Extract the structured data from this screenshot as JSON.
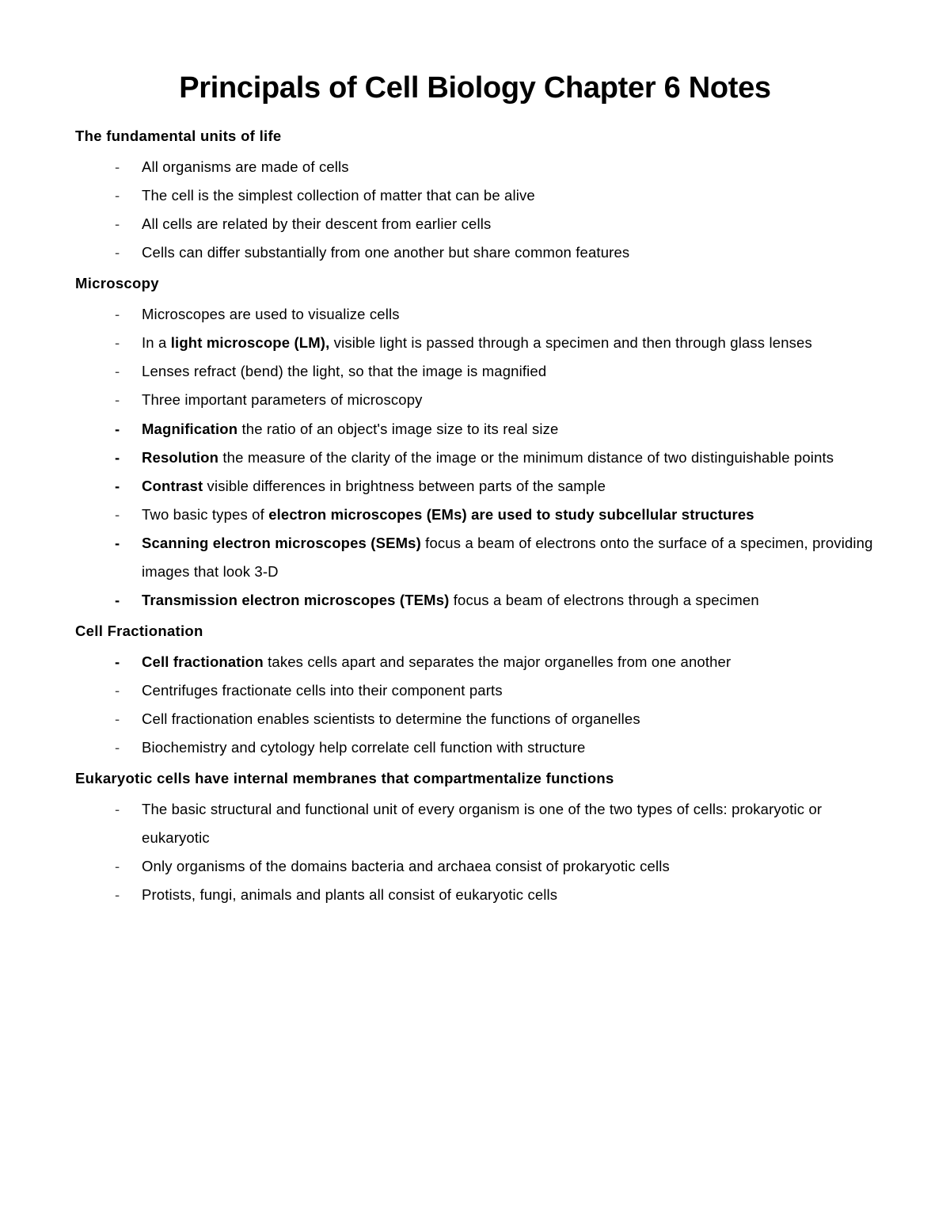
{
  "title": "Principals of Cell Biology Chapter 6 Notes",
  "sections": [
    {
      "heading": "The fundamental units of life",
      "items": [
        {
          "boldDash": false,
          "segments": [
            {
              "text": "All organisms are made of cells",
              "bold": false
            }
          ]
        },
        {
          "boldDash": false,
          "segments": [
            {
              "text": "The cell is the simplest collection of matter that can be alive",
              "bold": false
            }
          ]
        },
        {
          "boldDash": false,
          "segments": [
            {
              "text": "All cells are related by their descent from earlier cells",
              "bold": false
            }
          ]
        },
        {
          "boldDash": false,
          "segments": [
            {
              "text": "Cells can differ substantially from one another but share common features",
              "bold": false
            }
          ]
        }
      ]
    },
    {
      "heading": "Microscopy",
      "items": [
        {
          "boldDash": false,
          "segments": [
            {
              "text": "Microscopes are used to visualize cells",
              "bold": false
            }
          ]
        },
        {
          "boldDash": false,
          "segments": [
            {
              "text": "In a ",
              "bold": false
            },
            {
              "text": "light microscope (LM),",
              "bold": true
            },
            {
              "text": " visible light is passed through a specimen and then through glass lenses",
              "bold": false
            }
          ]
        },
        {
          "boldDash": false,
          "segments": [
            {
              "text": "Lenses refract (bend) the light, so that the image is magnified",
              "bold": false
            }
          ]
        },
        {
          "boldDash": false,
          "segments": [
            {
              "text": "Three important parameters of microscopy",
              "bold": false
            }
          ]
        },
        {
          "boldDash": true,
          "segments": [
            {
              "text": "Magnification",
              "bold": true
            },
            {
              "text": " the ratio of an object's image size to its real size",
              "bold": false
            }
          ]
        },
        {
          "boldDash": true,
          "segments": [
            {
              "text": "Resolution",
              "bold": true
            },
            {
              "text": " the measure of the clarity of the image or the minimum distance of two distinguishable points",
              "bold": false
            }
          ]
        },
        {
          "boldDash": true,
          "segments": [
            {
              "text": "Contrast",
              "bold": true
            },
            {
              "text": " visible differences in brightness between parts of the sample",
              "bold": false
            }
          ]
        },
        {
          "boldDash": false,
          "segments": [
            {
              "text": "Two basic types of ",
              "bold": false
            },
            {
              "text": "electron microscopes (EMs) are used to study subcellular structures",
              "bold": true
            }
          ]
        },
        {
          "boldDash": true,
          "segments": [
            {
              "text": "Scanning electron microscopes (SEMs)",
              "bold": true
            },
            {
              "text": " focus a beam of electrons onto the surface of a specimen, providing images that look 3-D",
              "bold": false
            }
          ]
        },
        {
          "boldDash": true,
          "segments": [
            {
              "text": "Transmission electron microscopes (TEMs)",
              "bold": true
            },
            {
              "text": " focus a beam of electrons through a specimen",
              "bold": false
            }
          ]
        }
      ]
    },
    {
      "heading": "Cell Fractionation",
      "items": [
        {
          "boldDash": true,
          "segments": [
            {
              "text": "Cell fractionation",
              "bold": true
            },
            {
              "text": " takes cells apart and separates the major organelles from one another",
              "bold": false
            }
          ]
        },
        {
          "boldDash": false,
          "segments": [
            {
              "text": "Centrifuges fractionate cells into their component parts",
              "bold": false
            }
          ]
        },
        {
          "boldDash": false,
          "segments": [
            {
              "text": "Cell fractionation enables scientists to determine the functions of organelles",
              "bold": false
            }
          ]
        },
        {
          "boldDash": false,
          "segments": [
            {
              "text": "Biochemistry and cytology help correlate cell function with structure",
              "bold": false
            }
          ]
        }
      ]
    },
    {
      "heading": "Eukaryotic cells have internal membranes that compartmentalize functions",
      "items": [
        {
          "boldDash": false,
          "segments": [
            {
              "text": "The basic structural and functional unit of every organism is one of the two types of cells: prokaryotic or eukaryotic",
              "bold": false
            }
          ]
        },
        {
          "boldDash": false,
          "segments": [
            {
              "text": "Only organisms of the domains bacteria and archaea consist of prokaryotic cells",
              "bold": false
            }
          ]
        },
        {
          "boldDash": false,
          "segments": [
            {
              "text": "Protists, fungi, animals and plants all consist of eukaryotic cells",
              "bold": false
            }
          ]
        }
      ]
    }
  ],
  "colors": {
    "background": "#ffffff",
    "text": "#000000"
  },
  "typography": {
    "title_fontsize": 38,
    "heading_fontsize": 18.5,
    "body_fontsize": 18.5,
    "line_height": 1.95
  }
}
